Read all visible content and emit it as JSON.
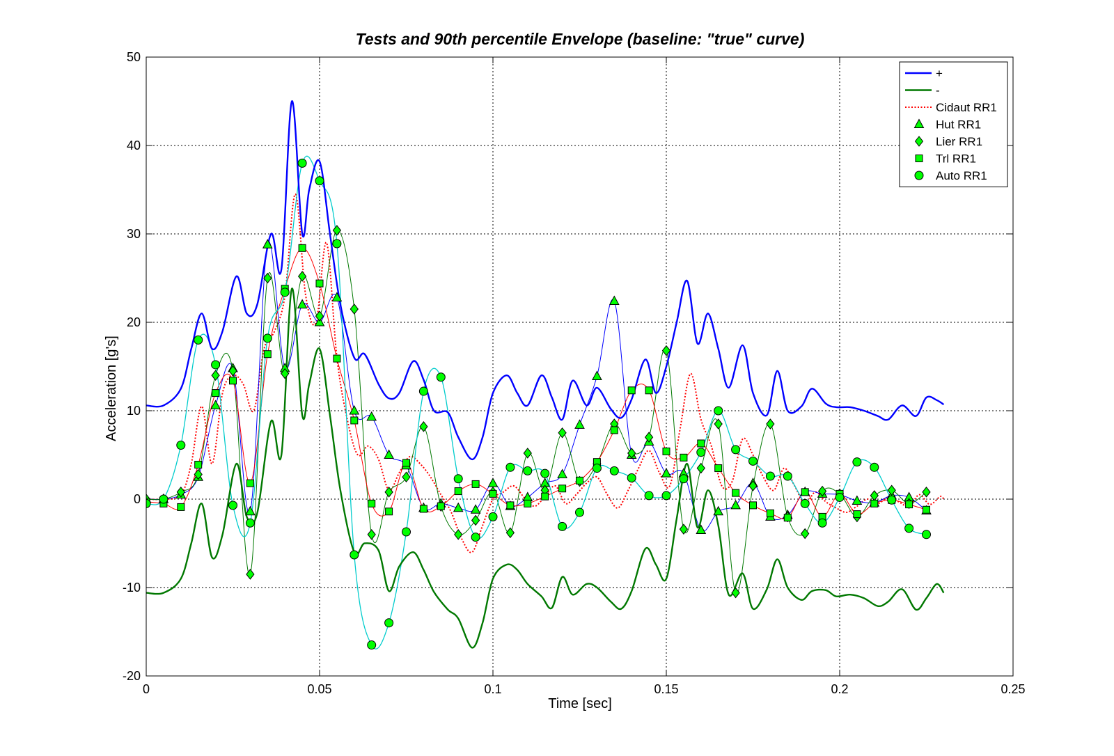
{
  "chart_data": {
    "type": "line",
    "title": "Tests and 90th percentile Envelope (baseline: \"true\" curve)",
    "xlabel": "Time [sec]",
    "ylabel": "Acceleration [g's]",
    "xlim": [
      0,
      0.25
    ],
    "ylim": [
      -20,
      50
    ],
    "xticks": [
      "0",
      "0.05",
      "0.1",
      "0.15",
      "0.2",
      "0.25"
    ],
    "yticks": [
      "-20",
      "-10",
      "0",
      "10",
      "20",
      "30",
      "40",
      "50"
    ],
    "grid": true,
    "legend_position": "top-right",
    "series": [
      {
        "name": "+",
        "color": "#0000ff",
        "style": "solid",
        "width": 2.4,
        "marker": "none",
        "x": [
          0,
          0.005,
          0.01,
          0.013,
          0.016,
          0.019,
          0.022,
          0.026,
          0.029,
          0.032,
          0.036,
          0.039,
          0.042,
          0.045,
          0.047,
          0.05,
          0.053,
          0.056,
          0.06,
          0.063,
          0.067,
          0.07,
          0.073,
          0.077,
          0.08,
          0.083,
          0.087,
          0.09,
          0.094,
          0.097,
          0.1,
          0.104,
          0.107,
          0.11,
          0.114,
          0.117,
          0.12,
          0.123,
          0.127,
          0.13,
          0.134,
          0.137,
          0.14,
          0.144,
          0.147,
          0.15,
          0.153,
          0.156,
          0.159,
          0.162,
          0.165,
          0.168,
          0.172,
          0.175,
          0.179,
          0.182,
          0.185,
          0.189,
          0.192,
          0.196,
          0.199,
          0.203,
          0.207,
          0.211,
          0.214,
          0.218,
          0.222,
          0.225,
          0.228,
          0.23
        ],
        "y": [
          10.6,
          10.6,
          12.5,
          17,
          21,
          17,
          19,
          25.2,
          21,
          22,
          30,
          26,
          45,
          30,
          35,
          38.2,
          30,
          22,
          16,
          16.4,
          13,
          11.4,
          12,
          15.6,
          13.5,
          10,
          9.8,
          7,
          4.5,
          7,
          12,
          14,
          12,
          10.6,
          14,
          11.5,
          9,
          13.4,
          10.6,
          12.6,
          10.2,
          9.2,
          11.3,
          15.8,
          12,
          15,
          20,
          24.7,
          17.6,
          21,
          17,
          12.6,
          17.4,
          12,
          9.5,
          14.5,
          10,
          10.5,
          12.5,
          10.8,
          10.4,
          10.4,
          10,
          9.4,
          9,
          10.6,
          9.4,
          11.5,
          11.2,
          10.7
        ]
      },
      {
        "name": "-",
        "color": "#007800",
        "style": "solid",
        "width": 2.4,
        "marker": "none",
        "x": [
          0,
          0.005,
          0.01,
          0.013,
          0.016,
          0.019,
          0.022,
          0.026,
          0.029,
          0.032,
          0.036,
          0.039,
          0.042,
          0.045,
          0.047,
          0.05,
          0.053,
          0.056,
          0.06,
          0.063,
          0.067,
          0.07,
          0.073,
          0.077,
          0.08,
          0.083,
          0.087,
          0.09,
          0.094,
          0.097,
          0.1,
          0.104,
          0.107,
          0.11,
          0.114,
          0.117,
          0.12,
          0.123,
          0.127,
          0.13,
          0.134,
          0.137,
          0.14,
          0.144,
          0.147,
          0.15,
          0.153,
          0.156,
          0.159,
          0.162,
          0.165,
          0.168,
          0.172,
          0.175,
          0.179,
          0.182,
          0.185,
          0.189,
          0.192,
          0.196,
          0.199,
          0.203,
          0.207,
          0.211,
          0.214,
          0.218,
          0.222,
          0.225,
          0.228,
          0.23
        ],
        "y": [
          -10.6,
          -10.6,
          -9,
          -5,
          -0.5,
          -6.6,
          -4,
          4,
          -2,
          -1.6,
          8.8,
          5,
          23.8,
          9.5,
          13,
          17,
          9.5,
          1,
          -6,
          -5,
          -5.8,
          -10.4,
          -7.6,
          -6,
          -8,
          -10.5,
          -12.5,
          -13.5,
          -16.8,
          -14,
          -9,
          -7.4,
          -8,
          -9.6,
          -11,
          -12.3,
          -8.8,
          -10.8,
          -9.6,
          -10,
          -11.6,
          -12.4,
          -10.4,
          -5.6,
          -7.4,
          -9,
          -2.2,
          4,
          -3.2,
          1,
          -3,
          -10.8,
          -8.4,
          -12.4,
          -10.2,
          -6.8,
          -10,
          -11.4,
          -10.4,
          -10.3,
          -11,
          -10.8,
          -11.2,
          -12.1,
          -11.6,
          -10.2,
          -12.5,
          -11.2,
          -9.6,
          -10.6
        ]
      },
      {
        "name": "Cidaut RR1",
        "color": "#ff0000",
        "style": "dotted",
        "width": 2,
        "marker": "none",
        "x": [
          0,
          0.005,
          0.01,
          0.013,
          0.016,
          0.019,
          0.022,
          0.025,
          0.028,
          0.031,
          0.034,
          0.037,
          0.04,
          0.043,
          0.046,
          0.049,
          0.052,
          0.055,
          0.058,
          0.061,
          0.064,
          0.067,
          0.07,
          0.073,
          0.076,
          0.079,
          0.082,
          0.085,
          0.088,
          0.091,
          0.094,
          0.097,
          0.1,
          0.103,
          0.106,
          0.109,
          0.112,
          0.115,
          0.118,
          0.121,
          0.124,
          0.127,
          0.13,
          0.133,
          0.136,
          0.139,
          0.142,
          0.145,
          0.148,
          0.151,
          0.154,
          0.157,
          0.16,
          0.163,
          0.166,
          0.169,
          0.172,
          0.175,
          0.178,
          0.181,
          0.184,
          0.187,
          0.19,
          0.193,
          0.196,
          0.199,
          0.202,
          0.205,
          0.208,
          0.211,
          0.214,
          0.217,
          0.22,
          0.223,
          0.226,
          0.229,
          0.23
        ],
        "y": [
          0,
          0,
          0.5,
          4,
          10.5,
          4,
          12,
          14,
          13,
          10,
          17,
          19,
          23,
          34.5,
          23,
          20,
          29,
          16,
          9,
          5,
          6,
          4.5,
          1,
          3,
          4.8,
          4,
          2.5,
          0.5,
          -1.5,
          -4.5,
          -6,
          -3,
          0,
          0.8,
          1.5,
          0.2,
          -0.8,
          0.3,
          1.5,
          -0.5,
          0.5,
          1.8,
          2.5,
          0.5,
          -1,
          1,
          3.5,
          5.5,
          3,
          1.5,
          8,
          14.2,
          9,
          6,
          1.5,
          2,
          6.8,
          5,
          2.5,
          1,
          3.5,
          1.5,
          -0.5,
          0.8,
          -0.3,
          -1,
          -1.5,
          -0.8,
          0,
          -0.5,
          0.2,
          -0.3,
          -0.8,
          0.5,
          -0.6,
          0.3,
          0
        ]
      },
      {
        "name": "Hut RR1",
        "color": "#0000ff",
        "style": "solid",
        "width": 1,
        "marker": "triangle",
        "x": [
          0,
          0.005,
          0.01,
          0.015,
          0.02,
          0.025,
          0.03,
          0.035,
          0.04,
          0.045,
          0.05,
          0.055,
          0.06,
          0.065,
          0.07,
          0.075,
          0.08,
          0.085,
          0.09,
          0.095,
          0.1,
          0.105,
          0.11,
          0.115,
          0.12,
          0.125,
          0.13,
          0.135,
          0.14,
          0.145,
          0.15,
          0.155,
          0.16,
          0.165,
          0.17,
          0.175,
          0.18,
          0.185,
          0.19,
          0.195,
          0.2,
          0.205,
          0.21,
          0.215,
          0.22,
          0.225
        ],
        "y": [
          0,
          0,
          0.5,
          2.5,
          10.6,
          14.8,
          -1.4,
          28.8,
          14.8,
          22,
          20,
          22.8,
          10,
          9.3,
          5,
          3.8,
          -1,
          -0.5,
          -1,
          -1.2,
          1.8,
          -0.8,
          0.2,
          1.8,
          2.8,
          8.4,
          13.9,
          22.4,
          5,
          6.5,
          2.9,
          2.9,
          -3.5,
          -1.4,
          -0.7,
          1.8,
          -2,
          -1.8,
          0.8,
          0.6,
          0.5,
          -0.2,
          -0.4,
          0.4,
          0.2,
          -1.3
        ]
      },
      {
        "name": "Lier RR1",
        "color": "#007800",
        "style": "solid",
        "width": 1,
        "marker": "diamond",
        "x": [
          0,
          0.005,
          0.01,
          0.015,
          0.02,
          0.025,
          0.03,
          0.035,
          0.04,
          0.045,
          0.05,
          0.055,
          0.06,
          0.065,
          0.07,
          0.075,
          0.08,
          0.085,
          0.09,
          0.095,
          0.1,
          0.105,
          0.11,
          0.115,
          0.12,
          0.125,
          0.13,
          0.135,
          0.14,
          0.145,
          0.15,
          0.155,
          0.16,
          0.165,
          0.17,
          0.175,
          0.18,
          0.185,
          0.19,
          0.195,
          0.2,
          0.205,
          0.21,
          0.215,
          0.22,
          0.225
        ],
        "y": [
          0,
          0,
          0.8,
          2.8,
          14,
          14.5,
          -8.5,
          25,
          14.2,
          25.2,
          20.7,
          30.4,
          21.5,
          -4,
          0.8,
          2.5,
          8.2,
          -0.8,
          -4,
          -2.4,
          0.8,
          -3.8,
          5.2,
          1,
          7.5,
          2,
          4,
          8.5,
          5.2,
          7,
          16.8,
          -3.4,
          3.5,
          8.5,
          -10.6,
          1.5,
          8.5,
          -2,
          -3.9,
          0.9,
          0.6,
          -2,
          0.4,
          1,
          -0.5,
          0.8
        ]
      },
      {
        "name": "Trl RR1",
        "color": "#ff0000",
        "style": "solid",
        "width": 1,
        "marker": "square",
        "x": [
          0,
          0.005,
          0.01,
          0.015,
          0.02,
          0.025,
          0.03,
          0.035,
          0.04,
          0.045,
          0.05,
          0.055,
          0.06,
          0.065,
          0.07,
          0.075,
          0.08,
          0.085,
          0.09,
          0.095,
          0.1,
          0.105,
          0.11,
          0.115,
          0.12,
          0.125,
          0.13,
          0.135,
          0.14,
          0.145,
          0.15,
          0.155,
          0.16,
          0.165,
          0.17,
          0.175,
          0.18,
          0.185,
          0.19,
          0.195,
          0.2,
          0.205,
          0.21,
          0.215,
          0.22,
          0.225
        ],
        "y": [
          -0.3,
          -0.5,
          -0.9,
          3.9,
          12,
          13.4,
          1.8,
          16.4,
          23.8,
          28.4,
          24.4,
          15.9,
          8.9,
          -0.5,
          -1.4,
          4.1,
          -1.1,
          -0.8,
          0.9,
          1.7,
          0.6,
          -0.7,
          -0.5,
          0.3,
          1.2,
          2.1,
          4.2,
          7.8,
          12.3,
          12.3,
          5.4,
          4.7,
          6.3,
          3.5,
          0.7,
          -0.7,
          -1.6,
          -2.1,
          0.8,
          -2,
          0.6,
          -1.7,
          -0.5,
          -0.1,
          -0.6,
          -1.2
        ]
      },
      {
        "name": "Auto RR1",
        "color": "#00cccc",
        "style": "solid",
        "width": 1.3,
        "marker": "circle",
        "x": [
          0,
          0.005,
          0.01,
          0.015,
          0.02,
          0.025,
          0.03,
          0.035,
          0.04,
          0.045,
          0.05,
          0.055,
          0.06,
          0.065,
          0.07,
          0.075,
          0.08,
          0.085,
          0.09,
          0.095,
          0.1,
          0.105,
          0.11,
          0.115,
          0.12,
          0.125,
          0.13,
          0.135,
          0.14,
          0.145,
          0.15,
          0.155,
          0.16,
          0.165,
          0.17,
          0.175,
          0.18,
          0.185,
          0.19,
          0.195,
          0.2,
          0.205,
          0.21,
          0.215,
          0.22,
          0.225
        ],
        "y": [
          -0.5,
          0,
          6.1,
          18,
          15.2,
          -0.7,
          -2.7,
          18.2,
          23.4,
          38,
          36,
          28.9,
          -6.3,
          -16.5,
          -14,
          -3.7,
          12.2,
          13.8,
          2.3,
          -4.3,
          -2,
          3.6,
          3.2,
          2.9,
          -3.1,
          -1.5,
          3.5,
          3.2,
          2.4,
          0.4,
          0.4,
          2.3,
          5.3,
          10,
          5.6,
          4.3,
          2.6,
          2.6,
          -0.5,
          -2.7,
          0.2,
          4.2,
          3.6,
          -0.1,
          -3.3,
          -4
        ]
      }
    ]
  }
}
